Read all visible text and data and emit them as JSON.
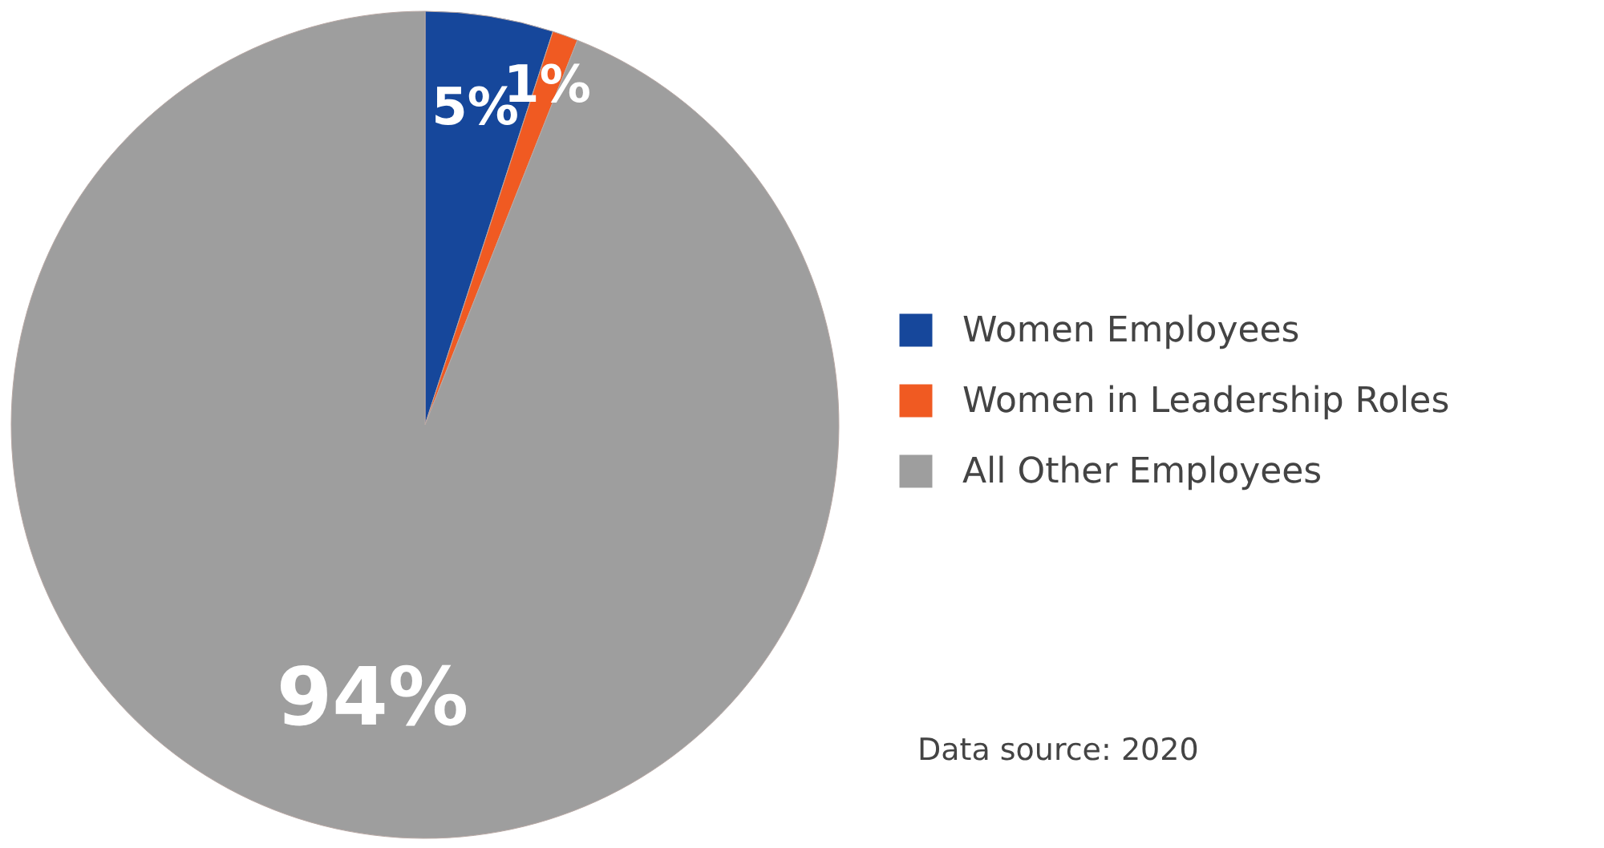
{
  "chart_data": {
    "type": "pie",
    "categories": [
      "Women Employees",
      "Women in Leadership Roles",
      "All Other Employees"
    ],
    "values": [
      5,
      1,
      94
    ],
    "colors": [
      "#16479b",
      "#f05a22",
      "#9e9e9e"
    ],
    "value_labels": [
      "5%",
      "1%",
      "94%"
    ],
    "legend": "right",
    "annotations": [
      "Data source: 2020"
    ]
  }
}
